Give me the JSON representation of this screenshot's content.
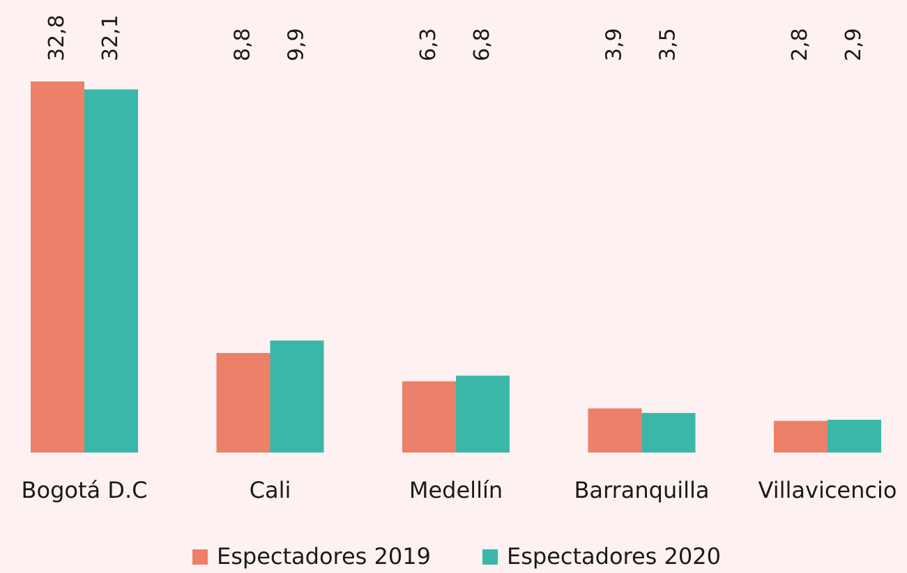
{
  "chart_data": {
    "type": "bar",
    "categories": [
      "Bogotá D.C",
      "Cali",
      "Medellín",
      "Barranquilla",
      "Villavicencio"
    ],
    "series": [
      {
        "name": "Espectadores 2019",
        "color": "#ec8068",
        "values": [
          32.8,
          8.8,
          6.3,
          3.9,
          2.8
        ],
        "value_labels": [
          "32,8",
          "8,8",
          "6,3",
          "3,9",
          "2,8"
        ]
      },
      {
        "name": "Espectadores 2020",
        "color": "#3bb7a9",
        "values": [
          32.1,
          9.9,
          6.8,
          3.5,
          2.9
        ],
        "value_labels": [
          "32,1",
          "9,9",
          "6,8",
          "3,5",
          "2,9"
        ]
      }
    ],
    "legend": "bottom"
  }
}
